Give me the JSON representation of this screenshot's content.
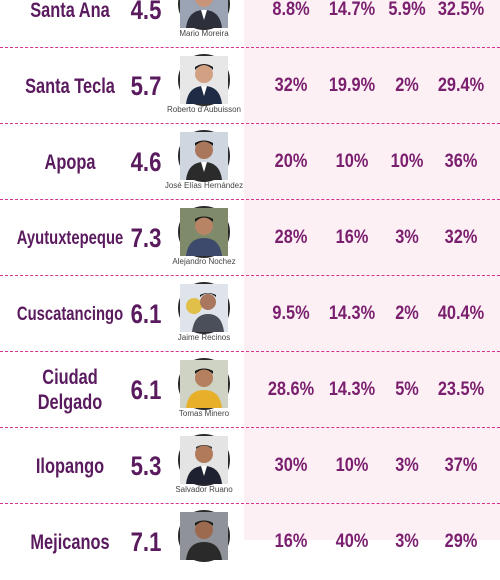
{
  "rows": [
    {
      "city": "Santa Ana",
      "score": "4.5",
      "candidate": "Mario Moreira",
      "p1": "8.8%",
      "p2": "14.7%",
      "p3": "5.9%",
      "p4": "32.5%",
      "avatar_bg": "#9aa4b4",
      "suit": "#2d2f3a"
    },
    {
      "city": "Santa Tecla",
      "score": "5.7",
      "candidate": "Roberto d'Aubuisson",
      "p1": "32%",
      "p2": "19.9%",
      "p3": "2%",
      "p4": "29.4%",
      "avatar_bg": "#e7e7e7",
      "suit": "#1f2a44"
    },
    {
      "city": "Apopa",
      "score": "4.6",
      "candidate": "José Elías Hernández",
      "p1": "20%",
      "p2": "10%",
      "p3": "10%",
      "p4": "36%",
      "avatar_bg": "#cfd6df",
      "suit": "#2b2b2b"
    },
    {
      "city": "Ayutuxtepeque",
      "score": "7.3",
      "candidate": "Alejandro Nochez",
      "p1": "28%",
      "p2": "16%",
      "p3": "3%",
      "p4": "32%",
      "avatar_bg": "#7f8a6a",
      "suit": "#3d4a6b"
    },
    {
      "city": "Cuscatancingo",
      "score": "6.1",
      "candidate": "Jaime Recinos",
      "p1": "9.5%",
      "p2": "14.3%",
      "p3": "2%",
      "p4": "40.4%",
      "avatar_bg": "#dfe3ea",
      "suit": "#4a4f5a"
    },
    {
      "city": "Ciudad Delgado",
      "score": "6.1",
      "candidate": "Tomas Minero",
      "p1": "28.6%",
      "p2": "14.3%",
      "p3": "5%",
      "p4": "23.5%",
      "avatar_bg": "#cfd3c4",
      "suit": "#e8b02a"
    },
    {
      "city": "Ilopango",
      "score": "5.3",
      "candidate": "Salvador Ruano",
      "p1": "30%",
      "p2": "10%",
      "p3": "3%",
      "p4": "37%",
      "avatar_bg": "#e4e4e4",
      "suit": "#1e2230"
    },
    {
      "city": "Mejicanos",
      "score": "7.1",
      "candidate": "",
      "p1": "16%",
      "p2": "40%",
      "p3": "3%",
      "p4": "29%",
      "avatar_bg": "#8f9299",
      "suit": "#2a2a2a"
    }
  ]
}
